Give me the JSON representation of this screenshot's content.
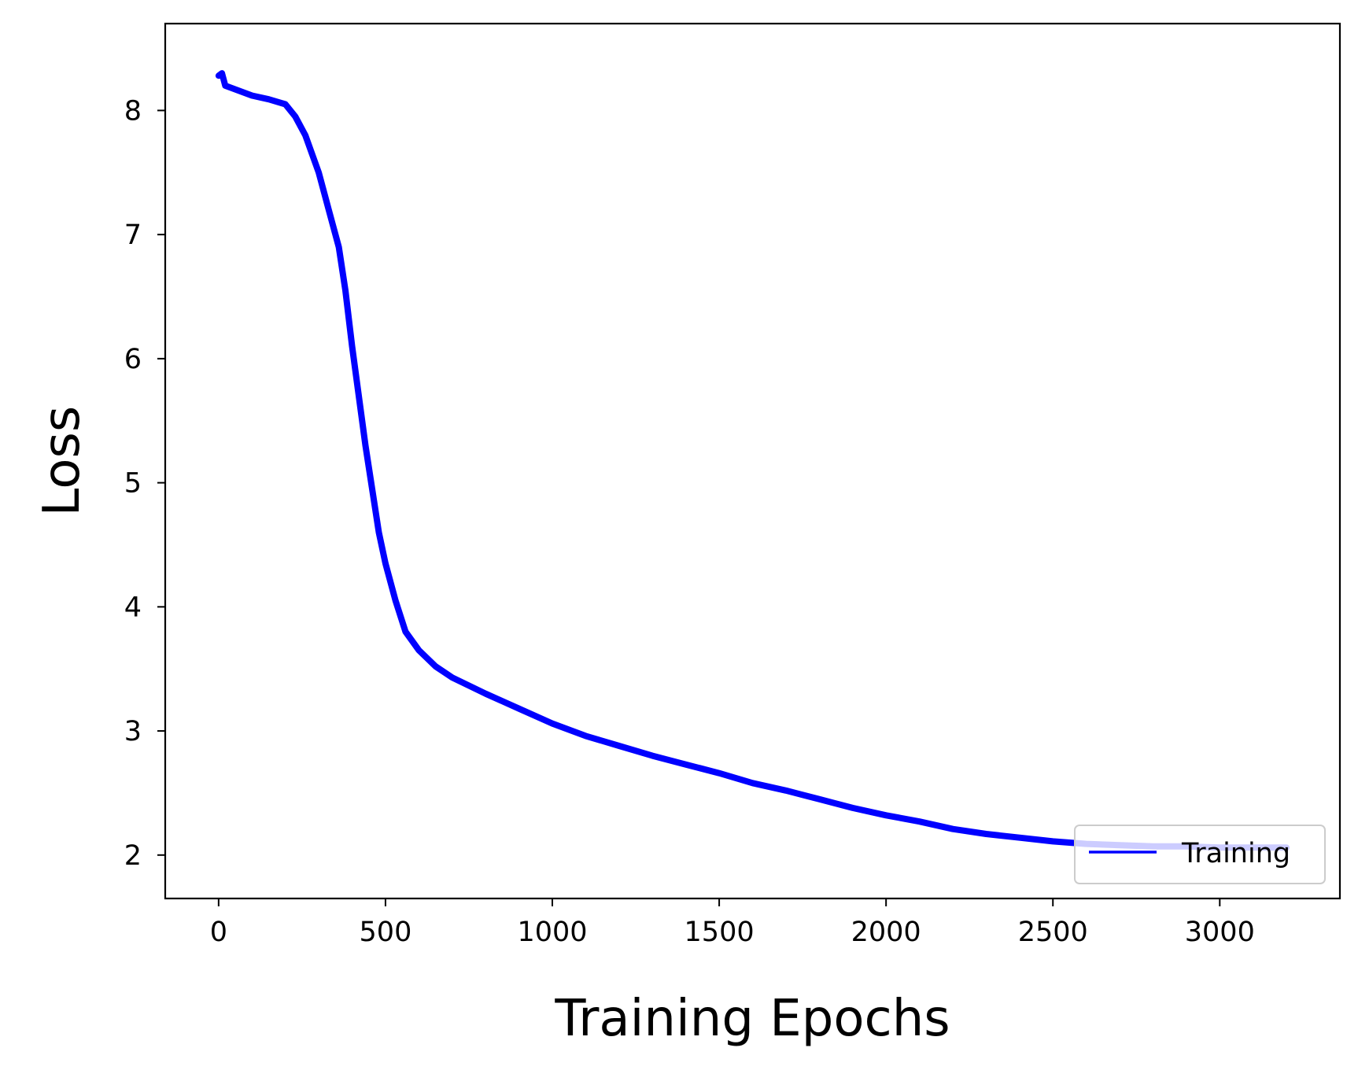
{
  "chart_data": {
    "type": "line",
    "title": "",
    "xlabel": "Training Epochs",
    "ylabel": "Loss",
    "xlim": [
      -160,
      3360
    ],
    "ylim": [
      1.65,
      8.7
    ],
    "xticks": [
      0,
      500,
      1000,
      1500,
      2000,
      2500,
      3000
    ],
    "yticks": [
      2,
      3,
      4,
      5,
      6,
      7,
      8
    ],
    "grid": false,
    "legend_position": "lower right",
    "series": [
      {
        "name": "Training",
        "color": "#0000ff",
        "x": [
          0,
          10,
          20,
          50,
          100,
          150,
          200,
          230,
          260,
          300,
          330,
          360,
          380,
          400,
          420,
          440,
          460,
          480,
          500,
          530,
          560,
          600,
          650,
          700,
          800,
          900,
          1000,
          1100,
          1200,
          1300,
          1400,
          1500,
          1600,
          1700,
          1800,
          1900,
          2000,
          2100,
          2200,
          2300,
          2400,
          2500,
          2600,
          2700,
          2800,
          2900,
          3000,
          3100,
          3200
        ],
        "y": [
          8.28,
          8.3,
          8.2,
          8.17,
          8.12,
          8.09,
          8.05,
          7.95,
          7.8,
          7.5,
          7.2,
          6.9,
          6.55,
          6.1,
          5.7,
          5.3,
          4.95,
          4.6,
          4.35,
          4.05,
          3.8,
          3.65,
          3.52,
          3.43,
          3.3,
          3.18,
          3.06,
          2.96,
          2.88,
          2.8,
          2.73,
          2.66,
          2.58,
          2.52,
          2.45,
          2.38,
          2.32,
          2.27,
          2.21,
          2.17,
          2.14,
          2.11,
          2.09,
          2.08,
          2.07,
          2.07,
          2.06,
          2.06,
          2.06
        ]
      }
    ]
  }
}
